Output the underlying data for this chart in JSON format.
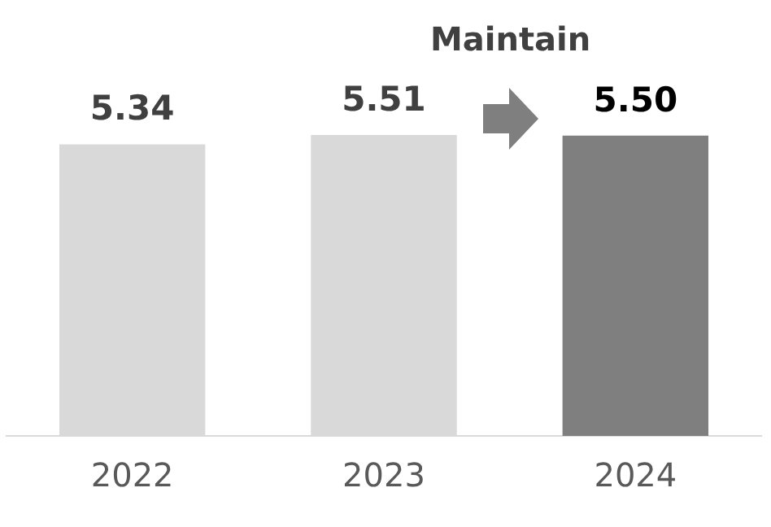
{
  "chart_data": {
    "type": "bar",
    "categories": [
      "2022",
      "2023",
      "2024"
    ],
    "values": [
      5.34,
      5.51,
      5.5
    ],
    "colors": [
      "#d9d9d9",
      "#d9d9d9",
      "#7f7f7f"
    ],
    "value_labels": [
      "5.34",
      "5.51",
      "5.50"
    ],
    "grid": false,
    "legend": false,
    "tick_labels": "x",
    "annotations": [
      "Maintain"
    ]
  }
}
